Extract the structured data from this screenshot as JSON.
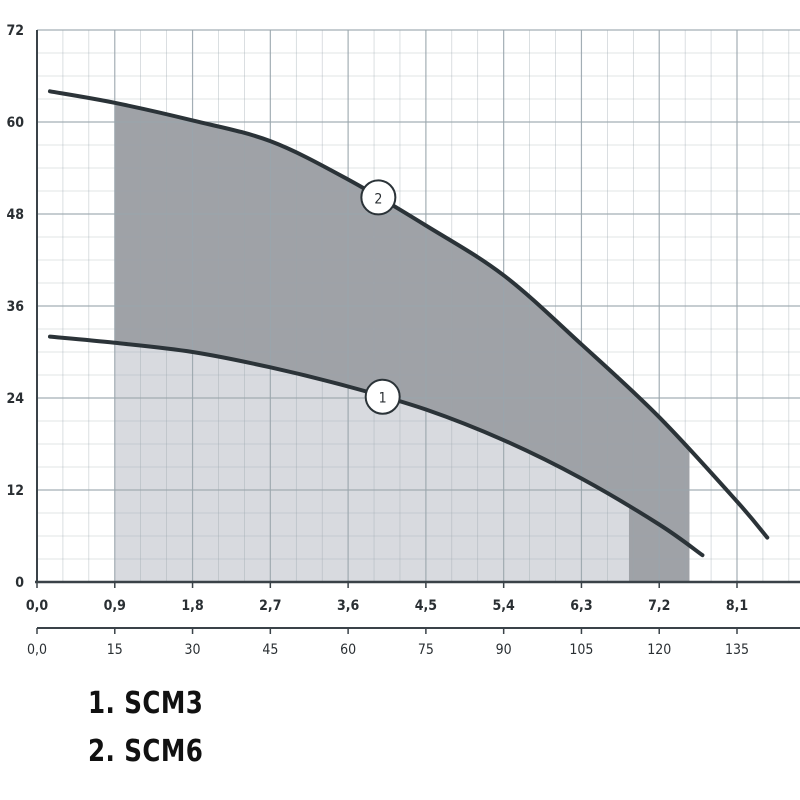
{
  "colors": {
    "grid": "#9aa6ad",
    "axis": "#3a4248",
    "curve": "#2b3338",
    "fill_scm3": "#d8dadf",
    "fill_scm6": "#9fa2a7",
    "marker_fill": "#ffffff"
  },
  "chart_data": {
    "type": "line",
    "ylim": [
      0,
      72
    ],
    "xlim": [
      0,
      9
    ],
    "y_ticks": [
      "0",
      "12",
      "24",
      "36",
      "48",
      "60",
      "72"
    ],
    "x_ticks_m3h": [
      "0,0",
      "0,9",
      "1,8",
      "2,7",
      "3,6",
      "4,5",
      "5,4",
      "6,3",
      "7,2",
      "8,1"
    ],
    "x_ticks_lmin": [
      "0,0",
      "15",
      "30",
      "45",
      "60",
      "75",
      "90",
      "105",
      "120",
      "135"
    ],
    "grid": true,
    "series": [
      {
        "marker": "1",
        "x": [
          0.15,
          0.9,
          1.8,
          2.7,
          3.6,
          4.5,
          5.4,
          6.3,
          7.2,
          7.7
        ],
        "y": [
          32,
          31.2,
          30,
          28,
          25.5,
          22.5,
          18.5,
          13.5,
          7.5,
          3.5
        ],
        "operating_range": [
          0.9,
          6.85
        ]
      },
      {
        "marker": "2",
        "x": [
          0.15,
          0.9,
          1.8,
          2.7,
          3.6,
          4.5,
          5.4,
          6.3,
          7.2,
          8.1,
          8.45
        ],
        "y": [
          64,
          62.5,
          60.2,
          57.5,
          52.5,
          46.5,
          40,
          31,
          21.5,
          10.5,
          5.8
        ],
        "operating_range": [
          0.9,
          7.55
        ]
      }
    ]
  },
  "legend": {
    "item1": "1. SCM3",
    "item2": "2. SCM6"
  }
}
